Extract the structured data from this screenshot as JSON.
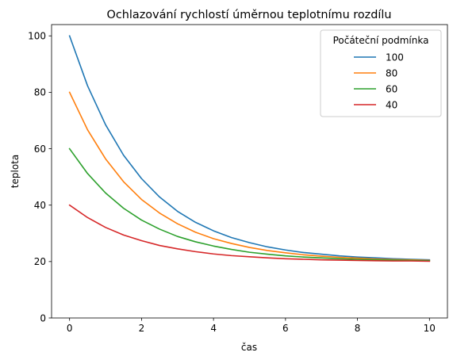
{
  "chart_data": {
    "type": "line",
    "title": "Ochlazování rychlostí úměrnou teplotnímu rozdílu",
    "xlabel": "čas",
    "ylabel": "teplota",
    "xlim": [
      -0.5,
      10.5
    ],
    "ylim": [
      0,
      104
    ],
    "xticks": [
      0,
      2,
      4,
      6,
      8,
      10
    ],
    "yticks": [
      0,
      20,
      40,
      60,
      80,
      100
    ],
    "xtick_labels": [
      "0",
      "2",
      "4",
      "6",
      "8",
      "10"
    ],
    "ytick_labels": [
      "0",
      "20",
      "40",
      "60",
      "80",
      "100"
    ],
    "grid": false,
    "legend": {
      "title": "Počáteční podmínka",
      "position": "top-right"
    },
    "x": [
      0,
      0.5,
      1,
      1.5,
      2,
      2.5,
      3,
      3.5,
      4,
      4.5,
      5,
      5.5,
      6,
      6.5,
      7,
      7.5,
      8,
      8.5,
      9,
      9.5,
      10
    ],
    "series": [
      {
        "name": "100",
        "color": "#1f77b4",
        "values": [
          100,
          82.3,
          68.5,
          57.7,
          49.4,
          42.9,
          37.8,
          33.9,
          30.9,
          28.5,
          26.7,
          25.2,
          24.1,
          23.2,
          22.6,
          22.0,
          21.6,
          21.3,
          21.0,
          20.8,
          20.6
        ]
      },
      {
        "name": "80",
        "color": "#ff7f0e",
        "values": [
          80,
          66.7,
          56.4,
          48.3,
          42.0,
          37.2,
          33.4,
          30.4,
          28.1,
          26.4,
          25.0,
          23.9,
          23.1,
          22.4,
          21.9,
          21.5,
          21.2,
          20.9,
          20.7,
          20.6,
          20.4
        ]
      },
      {
        "name": "60",
        "color": "#2ca02c",
        "values": [
          60,
          51.2,
          44.3,
          38.9,
          34.7,
          31.5,
          28.9,
          27.0,
          25.5,
          24.3,
          23.3,
          22.6,
          22.0,
          21.6,
          21.3,
          21.0,
          20.8,
          20.6,
          20.5,
          20.4,
          20.3
        ]
      },
      {
        "name": "40",
        "color": "#d62728",
        "values": [
          40,
          35.6,
          32.1,
          29.4,
          27.4,
          25.7,
          24.5,
          23.5,
          22.7,
          22.1,
          21.7,
          21.3,
          21.0,
          20.8,
          20.6,
          20.5,
          20.4,
          20.3,
          20.2,
          20.2,
          20.1
        ]
      }
    ]
  }
}
